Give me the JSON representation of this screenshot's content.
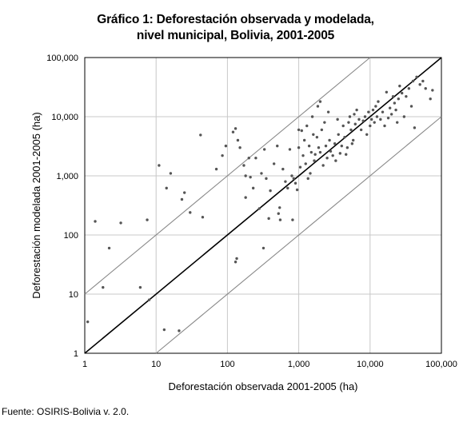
{
  "chart_data": {
    "type": "scatter",
    "title": "Gráfico 1: Deforestación observada y modelada,",
    "subtitle": "nivel municipal, Bolivia, 2001-2005",
    "xlabel": "Deforestación observada 2001-2005 (ha)",
    "ylabel": "Deforestación modelada 2001-2005 (ha)",
    "xscale": "log",
    "yscale": "log",
    "xlim": [
      1,
      100000
    ],
    "ylim": [
      1,
      100000
    ],
    "grid": true,
    "x_ticks": [
      "1",
      "10",
      "100",
      "1,000",
      "10,000",
      "100,000"
    ],
    "y_ticks": [
      "1",
      "10",
      "100",
      "1,000",
      "10,000",
      "100,000"
    ],
    "reference_lines": [
      {
        "kind": "y = x",
        "factor": 1,
        "color": "#000000"
      },
      {
        "kind": "y = 10x",
        "factor": 10,
        "color": "#888888"
      },
      {
        "kind": "y = x/10",
        "factor": 0.1,
        "color": "#888888"
      }
    ],
    "marker_color": "#555555",
    "points": [
      [
        1.1,
        3.4
      ],
      [
        1.4,
        170
      ],
      [
        1.8,
        13
      ],
      [
        2.2,
        60
      ],
      [
        3.2,
        160
      ],
      [
        6,
        13
      ],
      [
        7.5,
        180
      ],
      [
        8,
        8
      ],
      [
        11,
        1500
      ],
      [
        13,
        2.5
      ],
      [
        14,
        620
      ],
      [
        16,
        1100
      ],
      [
        21,
        2.4
      ],
      [
        23,
        400
      ],
      [
        25,
        520
      ],
      [
        30,
        240
      ],
      [
        42,
        4900
      ],
      [
        45,
        200
      ],
      [
        70,
        1300
      ],
      [
        85,
        2200
      ],
      [
        95,
        3200
      ],
      [
        120,
        5500
      ],
      [
        130,
        6300
      ],
      [
        130,
        35
      ],
      [
        135,
        40
      ],
      [
        140,
        4000
      ],
      [
        150,
        3000
      ],
      [
        170,
        1500
      ],
      [
        180,
        1000
      ],
      [
        180,
        430
      ],
      [
        200,
        2000
      ],
      [
        210,
        950
      ],
      [
        230,
        620
      ],
      [
        250,
        2000
      ],
      [
        280,
        280
      ],
      [
        300,
        1100
      ],
      [
        320,
        60
      ],
      [
        330,
        2800
      ],
      [
        350,
        900
      ],
      [
        380,
        190
      ],
      [
        400,
        560
      ],
      [
        450,
        1600
      ],
      [
        500,
        3200
      ],
      [
        520,
        230
      ],
      [
        540,
        290
      ],
      [
        550,
        180
      ],
      [
        600,
        1300
      ],
      [
        650,
        800
      ],
      [
        700,
        620
      ],
      [
        750,
        2800
      ],
      [
        800,
        1000
      ],
      [
        820,
        180
      ],
      [
        850,
        900
      ],
      [
        900,
        750
      ],
      [
        950,
        580
      ],
      [
        1000,
        6000
      ],
      [
        1000,
        3000
      ],
      [
        1050,
        1400
      ],
      [
        1100,
        5800
      ],
      [
        1150,
        2200
      ],
      [
        1200,
        4000
      ],
      [
        1250,
        1600
      ],
      [
        1300,
        7000
      ],
      [
        1350,
        900
      ],
      [
        1400,
        3200
      ],
      [
        1450,
        1100
      ],
      [
        1500,
        2500
      ],
      [
        1550,
        10000
      ],
      [
        1600,
        5000
      ],
      [
        1650,
        1800
      ],
      [
        1700,
        2300
      ],
      [
        1800,
        4500
      ],
      [
        1850,
        15000
      ],
      [
        1900,
        3000
      ],
      [
        2000,
        18000
      ],
      [
        2000,
        2500
      ],
      [
        2100,
        6000
      ],
      [
        2200,
        1500
      ],
      [
        2300,
        8000
      ],
      [
        2400,
        3200
      ],
      [
        2500,
        2000
      ],
      [
        2600,
        12000
      ],
      [
        2700,
        4000
      ],
      [
        2800,
        2600
      ],
      [
        3000,
        2200
      ],
      [
        3200,
        3500
      ],
      [
        3300,
        1800
      ],
      [
        3500,
        9000
      ],
      [
        3600,
        5000
      ],
      [
        3800,
        2400
      ],
      [
        4000,
        3200
      ],
      [
        4200,
        7000
      ],
      [
        4400,
        4500
      ],
      [
        4600,
        2300
      ],
      [
        4800,
        3000
      ],
      [
        5000,
        8000
      ],
      [
        5200,
        10000
      ],
      [
        5400,
        6000
      ],
      [
        5600,
        3500
      ],
      [
        5800,
        4000
      ],
      [
        6000,
        11000
      ],
      [
        6200,
        7500
      ],
      [
        6500,
        13000
      ],
      [
        7000,
        9000
      ],
      [
        7500,
        6000
      ],
      [
        8000,
        8500
      ],
      [
        8500,
        10000
      ],
      [
        9000,
        5000
      ],
      [
        9500,
        12000
      ],
      [
        10000,
        7000
      ],
      [
        10500,
        9000
      ],
      [
        11000,
        13000
      ],
      [
        11500,
        8000
      ],
      [
        12000,
        15000
      ],
      [
        12500,
        10000
      ],
      [
        13000,
        18000
      ],
      [
        14000,
        9000
      ],
      [
        15000,
        12000
      ],
      [
        16000,
        7000
      ],
      [
        17000,
        26000
      ],
      [
        18000,
        9500
      ],
      [
        19000,
        14000
      ],
      [
        20000,
        11000
      ],
      [
        21000,
        22000
      ],
      [
        22000,
        17000
      ],
      [
        23000,
        13000
      ],
      [
        24000,
        8000
      ],
      [
        25000,
        20000
      ],
      [
        26000,
        33000
      ],
      [
        28000,
        25000
      ],
      [
        30000,
        10000
      ],
      [
        32000,
        22000
      ],
      [
        35000,
        30000
      ],
      [
        38000,
        15000
      ],
      [
        40000,
        40000
      ],
      [
        42000,
        6500
      ],
      [
        45000,
        47000
      ],
      [
        50000,
        35000
      ],
      [
        55000,
        40000
      ],
      [
        60000,
        30000
      ],
      [
        70000,
        20000
      ],
      [
        75000,
        28000
      ]
    ]
  },
  "source_note": "Fuente: OSIRIS-Bolivia v. 2.0."
}
